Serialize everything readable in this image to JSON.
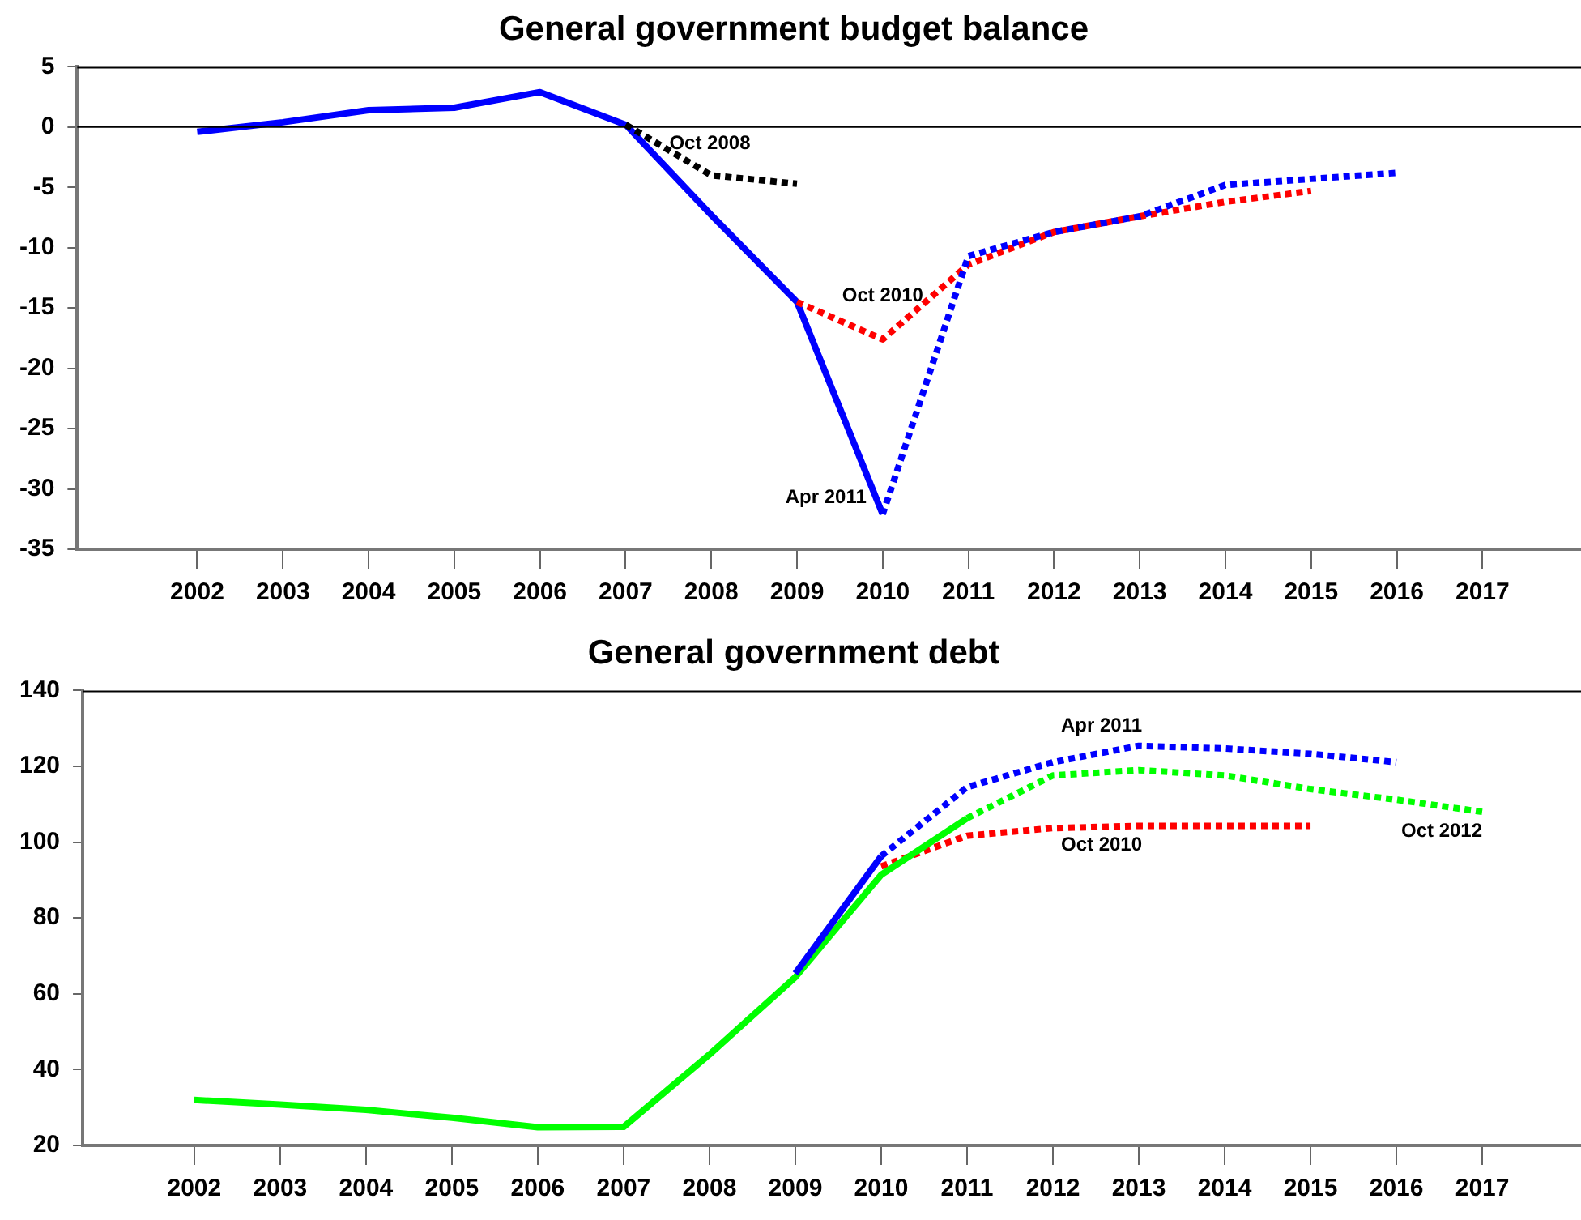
{
  "chart_data": [
    {
      "type": "line",
      "title": "General government budget balance",
      "xlim": [
        2000.6,
        2018.15
      ],
      "xticks": [
        2002,
        2003,
        2004,
        2005,
        2006,
        2007,
        2008,
        2009,
        2010,
        2011,
        2012,
        2013,
        2014,
        2015,
        2016,
        2017
      ],
      "ylim": [
        -35,
        5
      ],
      "yticks": [
        -35,
        -30,
        -25,
        -20,
        -15,
        -10,
        -5,
        0,
        5
      ],
      "grid": false,
      "legend": false,
      "marker": "none",
      "ref_lines": [
        {
          "axis": "y",
          "value": 0,
          "color": "#000000"
        }
      ],
      "series": [
        {
          "color": "#0000ff",
          "line_style": "solid",
          "x": [
            2002,
            2003,
            2004,
            2005,
            2006,
            2007,
            2008,
            2009,
            2010
          ],
          "values": [
            -0.4,
            0.4,
            1.4,
            1.6,
            2.9,
            0.2,
            -7.3,
            -14.5,
            -32.1
          ]
        },
        {
          "name": "Oct 2008",
          "color": "#000000",
          "line_style": "dotted",
          "x": [
            2007,
            2008,
            2009
          ],
          "values": [
            0.2,
            -4.0,
            -4.7
          ]
        },
        {
          "name": "Oct 2010",
          "color": "#ff0000",
          "line_style": "dotted",
          "x": [
            2009,
            2010,
            2011,
            2012,
            2013,
            2014,
            2015
          ],
          "values": [
            -14.5,
            -17.6,
            -11.4,
            -8.7,
            -7.4,
            -6.2,
            -5.3
          ]
        },
        {
          "name": "Apr 2011",
          "color": "#0000ff",
          "line_style": "dotted",
          "x": [
            2010,
            2011,
            2012,
            2013,
            2014,
            2015,
            2016
          ],
          "values": [
            -32.1,
            -10.7,
            -8.7,
            -7.4,
            -4.8,
            -4.3,
            -3.8
          ]
        }
      ]
    },
    {
      "type": "line",
      "title": "General government debt",
      "xlim": [
        2000.7,
        2018.15
      ],
      "xticks": [
        2002,
        2003,
        2004,
        2005,
        2006,
        2007,
        2008,
        2009,
        2010,
        2011,
        2012,
        2013,
        2014,
        2015,
        2016,
        2017
      ],
      "ylim": [
        20,
        140
      ],
      "yticks": [
        20,
        40,
        60,
        80,
        100,
        120,
        140
      ],
      "grid": false,
      "legend": false,
      "marker": "none",
      "series": [
        {
          "name": "Oct 2010",
          "color": "#ff0000",
          "line_style": "dotted",
          "x": [
            2010,
            2011,
            2012,
            2013,
            2014,
            2015
          ],
          "values": [
            93.6,
            101.7,
            103.7,
            104.3,
            104.3,
            104.3
          ]
        },
        {
          "color": "#00ff00",
          "line_style": "solid",
          "x": [
            2002,
            2003,
            2004,
            2005,
            2006,
            2007,
            2008,
            2009,
            2010,
            2011
          ],
          "values": [
            32,
            30.8,
            29.4,
            27.3,
            24.8,
            24.9,
            44,
            64.4,
            91.4,
            106.3
          ]
        },
        {
          "name": "Oct 2012",
          "color": "#00ff00",
          "line_style": "dotted",
          "x": [
            2011,
            2012,
            2013,
            2014,
            2015,
            2016,
            2017
          ],
          "values": [
            106.3,
            117.6,
            119,
            117.6,
            114,
            111.2,
            108
          ]
        },
        {
          "color": "#0000ff",
          "line_style": "solid",
          "x": [
            2009,
            2010
          ],
          "values": [
            65.4,
            96.3
          ]
        },
        {
          "name": "Apr 2011",
          "color": "#0000ff",
          "line_style": "dotted",
          "x": [
            2010,
            2011,
            2012,
            2013,
            2014,
            2015,
            2016
          ],
          "values": [
            96.3,
            114.5,
            121.1,
            125.4,
            124.7,
            123.3,
            121.1
          ]
        }
      ]
    }
  ]
}
